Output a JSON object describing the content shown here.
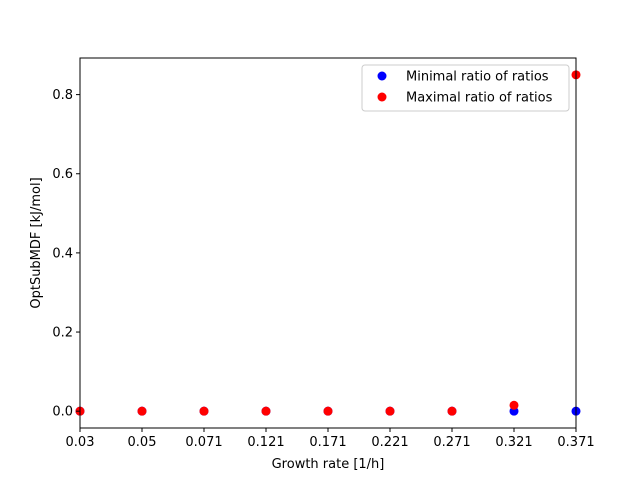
{
  "chart_data": {
    "type": "scatter",
    "title": "",
    "xlabel": "Growth rate [1/h]",
    "ylabel": "OptSubMDF [kJ/mol]",
    "x_categories": [
      "0.03",
      "0.05",
      "0.071",
      "0.121",
      "0.171",
      "0.221",
      "0.271",
      "0.321",
      "0.371"
    ],
    "ylim": [
      -0.0425,
      0.8925
    ],
    "yticks": [
      {
        "value": 0.0,
        "label": "0.0"
      },
      {
        "value": 0.2,
        "label": "0.2"
      },
      {
        "value": 0.4,
        "label": "0.4"
      },
      {
        "value": 0.6,
        "label": "0.6"
      },
      {
        "value": 0.8,
        "label": "0.8"
      }
    ],
    "grid": false,
    "legend_position": "top-right",
    "series": [
      {
        "name": "Minimal ratio of ratios",
        "color": "#0000ff",
        "values": [
          0,
          0,
          0,
          0,
          0,
          0,
          0,
          0,
          0
        ]
      },
      {
        "name": "Maximal ratio of ratios",
        "color": "#ff0000",
        "values": [
          0,
          0,
          0,
          0,
          0,
          0,
          0,
          0.015,
          0.85
        ]
      }
    ]
  }
}
